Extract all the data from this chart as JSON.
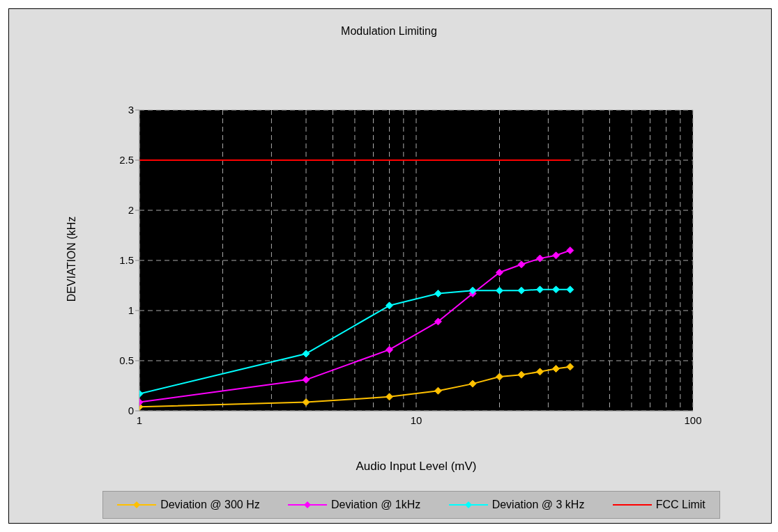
{
  "chart_data": {
    "type": "line",
    "title": "Modulation Limiting",
    "xlabel": "Audio Input Level (mV)",
    "ylabel": "DEVIATION (kHz",
    "log": "x",
    "grid": true,
    "legend": "bottom",
    "marker": "diamond",
    "line_style": "solid",
    "xlim": [
      1,
      100
    ],
    "xticks": [
      1,
      {
        "value": 2,
        "label": null
      },
      {
        "value": 3,
        "label": null
      },
      {
        "value": 4,
        "label": null
      },
      {
        "value": 5,
        "label": null
      },
      {
        "value": 6,
        "label": null
      },
      {
        "value": 7,
        "label": null
      },
      {
        "value": 8,
        "label": null
      },
      {
        "value": 9,
        "label": null
      },
      10,
      {
        "value": 20,
        "label": null
      },
      {
        "value": 30,
        "label": null
      },
      {
        "value": 40,
        "label": null
      },
      {
        "value": 50,
        "label": null
      },
      {
        "value": 60,
        "label": null
      },
      {
        "value": 70,
        "label": null
      },
      {
        "value": 80,
        "label": null
      },
      {
        "value": 90,
        "label": null
      },
      100
    ],
    "ylim": [
      0,
      3
    ],
    "yticks": [
      0,
      0.5,
      1,
      1.5,
      2,
      2.5,
      3
    ],
    "x": [
      1,
      4,
      8,
      12,
      16,
      20,
      24,
      28,
      32,
      36
    ],
    "series": [
      {
        "name": "Deviation @ 300 Hz",
        "color": "#ffc000",
        "values": [
          0.04,
          0.086,
          0.14,
          0.2,
          0.27,
          0.34,
          0.36,
          0.39,
          0.42,
          0.44
        ]
      },
      {
        "name": "Deviation @ 1kHz",
        "color": "#ff00ff",
        "values": [
          0.086,
          0.31,
          0.61,
          0.89,
          1.17,
          1.38,
          1.46,
          1.52,
          1.55,
          1.6
        ]
      },
      {
        "name": "Deviation @ 3 kHz",
        "color": "#00ffff",
        "values": [
          0.17,
          0.57,
          1.05,
          1.17,
          1.2,
          1.2,
          1.2,
          1.21,
          1.21,
          1.21
        ]
      },
      {
        "name": "FCC Limit",
        "color": "#ff0000",
        "marker": "none",
        "x": [
          1,
          36
        ],
        "values": [
          2.5,
          2.5
        ]
      }
    ]
  }
}
